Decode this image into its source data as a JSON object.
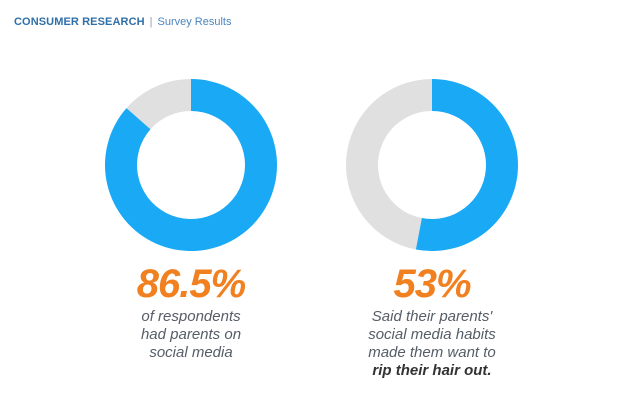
{
  "header": {
    "brand": "CONSUMER RESEARCH",
    "separator": "|",
    "subtitle": "Survey Results"
  },
  "colors": {
    "highlight": "#1aa9f5",
    "remainder": "#e0e0e0",
    "accent": "#f08020"
  },
  "chart_data": [
    {
      "type": "pie",
      "donut": true,
      "values": [
        86.5,
        13.5
      ],
      "label": "86.5%",
      "caption_lines": [
        "of respondents",
        "had parents on",
        "social media"
      ],
      "caption_bold": ""
    },
    {
      "type": "pie",
      "donut": true,
      "values": [
        53,
        47
      ],
      "label": "53%",
      "caption_lines": [
        "Said their parents'",
        "social media habits",
        "made them want to"
      ],
      "caption_bold": "rip their hair out."
    }
  ]
}
